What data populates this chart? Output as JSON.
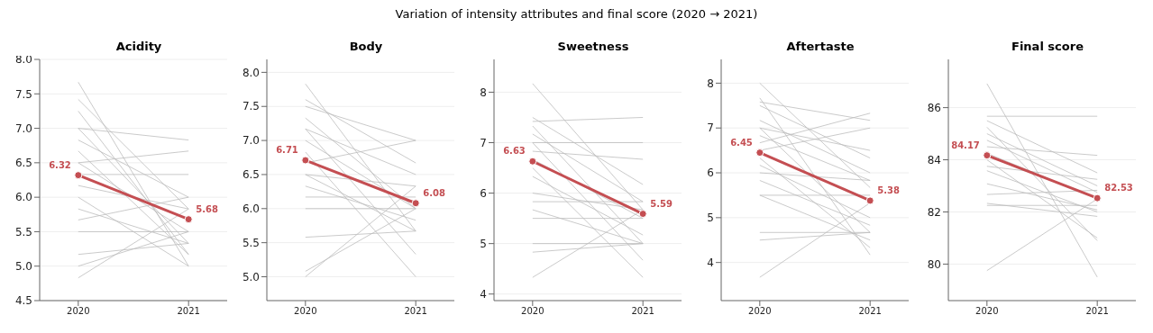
{
  "chart_data": [
    {
      "type": "line",
      "title": "Acidity",
      "annotations": [
        "Variation of intensity attributes and final score (2020 → 2021)"
      ],
      "categories": [
        "2020",
        "2021"
      ],
      "ylim": [
        4.5,
        8.0
      ],
      "yticks": [
        4.5,
        {
          "value": 5,
          "label": "5.0"
        },
        5.5,
        {
          "value": 6,
          "label": "6.0"
        },
        6.5,
        {
          "value": 7,
          "label": "7.0"
        },
        7.5,
        {
          "value": 8,
          "label": "8.0"
        }
      ],
      "grid": "y",
      "series": [
        {
          "color": "#bdbdbd",
          "values": [
            7.67,
            5.0
          ]
        },
        {
          "color": "#bdbdbd",
          "values": [
            7.42,
            5.83
          ]
        },
        {
          "color": "#bdbdbd",
          "values": [
            7.25,
            5.17
          ]
        },
        {
          "color": "#bdbdbd",
          "values": [
            7.0,
            6.83
          ]
        },
        {
          "color": "#bdbdbd",
          "values": [
            7.0,
            5.33
          ]
        },
        {
          "color": "#bdbdbd",
          "values": [
            6.83,
            6.0
          ]
        },
        {
          "color": "#bdbdbd",
          "values": [
            6.67,
            5.17
          ]
        },
        {
          "color": "#bdbdbd",
          "values": [
            6.5,
            6.67
          ]
        },
        {
          "color": "#bdbdbd",
          "values": [
            6.5,
            5.5
          ]
        },
        {
          "color": "#bdbdbd",
          "values": [
            6.33,
            6.33
          ]
        },
        {
          "color": "#bdbdbd",
          "values": [
            6.17,
            5.83
          ]
        },
        {
          "color": "#bdbdbd",
          "values": [
            6.0,
            5.0
          ]
        },
        {
          "color": "#bdbdbd",
          "values": [
            5.83,
            5.33
          ]
        },
        {
          "color": "#bdbdbd",
          "values": [
            5.67,
            6.0
          ]
        },
        {
          "color": "#bdbdbd",
          "values": [
            5.5,
            5.5
          ]
        },
        {
          "color": "#bdbdbd",
          "values": [
            5.17,
            5.33
          ]
        },
        {
          "color": "#bdbdbd",
          "values": [
            5.0,
            5.5
          ]
        },
        {
          "color": "#bdbdbd",
          "values": [
            4.83,
            5.83
          ]
        },
        {
          "color": "#c44e52",
          "values": [
            6.32,
            5.68
          ],
          "marker": "circle",
          "value_labels": [
            "6.32",
            "5.68"
          ]
        }
      ]
    },
    {
      "type": "line",
      "title": "Body",
      "categories": [
        "2020",
        "2021"
      ],
      "ylim": [
        4.65,
        8.19
      ],
      "yticks": [
        {
          "value": 5,
          "label": "5.0"
        },
        5.5,
        {
          "value": 6,
          "label": "6.0"
        },
        6.5,
        {
          "value": 7,
          "label": "7.0"
        },
        7.5,
        {
          "value": 8,
          "label": "8.0"
        }
      ],
      "grid": "y",
      "series": [
        {
          "color": "#bdbdbd",
          "values": [
            7.83,
            5.67
          ]
        },
        {
          "color": "#bdbdbd",
          "values": [
            7.6,
            6.67
          ]
        },
        {
          "color": "#bdbdbd",
          "values": [
            7.5,
            7.0
          ]
        },
        {
          "color": "#bdbdbd",
          "values": [
            7.33,
            6.0
          ]
        },
        {
          "color": "#bdbdbd",
          "values": [
            7.17,
            6.5
          ]
        },
        {
          "color": "#bdbdbd",
          "values": [
            7.17,
            5.33
          ]
        },
        {
          "color": "#bdbdbd",
          "values": [
            7.0,
            6.0
          ]
        },
        {
          "color": "#bdbdbd",
          "values": [
            6.83,
            5.0
          ]
        },
        {
          "color": "#bdbdbd",
          "values": [
            6.67,
            7.0
          ]
        },
        {
          "color": "#bdbdbd",
          "values": [
            6.5,
            6.33
          ]
        },
        {
          "color": "#bdbdbd",
          "values": [
            6.5,
            5.67
          ]
        },
        {
          "color": "#bdbdbd",
          "values": [
            6.33,
            5.83
          ]
        },
        {
          "color": "#bdbdbd",
          "values": [
            6.17,
            6.17
          ]
        },
        {
          "color": "#bdbdbd",
          "values": [
            6.0,
            6.0
          ]
        },
        {
          "color": "#bdbdbd",
          "values": [
            5.58,
            5.67
          ]
        },
        {
          "color": "#bdbdbd",
          "values": [
            5.08,
            6.0
          ]
        },
        {
          "color": "#bdbdbd",
          "values": [
            5.0,
            6.33
          ]
        },
        {
          "color": "#c44e52",
          "values": [
            6.71,
            6.08
          ],
          "marker": "circle",
          "value_labels": [
            "6.71",
            "6.08"
          ]
        }
      ]
    },
    {
      "type": "line",
      "title": "Sweetness",
      "categories": [
        "2020",
        "2021"
      ],
      "ylim": [
        3.87,
        8.65
      ],
      "yticks": [
        4,
        5,
        6,
        7,
        8
      ],
      "grid": "y",
      "series": [
        {
          "color": "#bdbdbd",
          "values": [
            8.17,
            5.67
          ]
        },
        {
          "color": "#bdbdbd",
          "values": [
            7.5,
            6.17
          ]
        },
        {
          "color": "#bdbdbd",
          "values": [
            7.42,
            7.5
          ]
        },
        {
          "color": "#bdbdbd",
          "values": [
            7.33,
            5.0
          ]
        },
        {
          "color": "#bdbdbd",
          "values": [
            7.17,
            5.83
          ]
        },
        {
          "color": "#bdbdbd",
          "values": [
            7.0,
            7.0
          ]
        },
        {
          "color": "#bdbdbd",
          "values": [
            7.0,
            4.67
          ]
        },
        {
          "color": "#bdbdbd",
          "values": [
            6.83,
            6.67
          ]
        },
        {
          "color": "#bdbdbd",
          "values": [
            6.67,
            5.5
          ]
        },
        {
          "color": "#bdbdbd",
          "values": [
            6.5,
            4.33
          ]
        },
        {
          "color": "#bdbdbd",
          "values": [
            6.33,
            5.17
          ]
        },
        {
          "color": "#bdbdbd",
          "values": [
            6.0,
            5.67
          ]
        },
        {
          "color": "#bdbdbd",
          "values": [
            5.83,
            5.83
          ]
        },
        {
          "color": "#bdbdbd",
          "values": [
            5.67,
            5.0
          ]
        },
        {
          "color": "#bdbdbd",
          "values": [
            5.5,
            5.5
          ]
        },
        {
          "color": "#bdbdbd",
          "values": [
            5.0,
            5.0
          ]
        },
        {
          "color": "#bdbdbd",
          "values": [
            4.83,
            5.0
          ]
        },
        {
          "color": "#bdbdbd",
          "values": [
            4.33,
            5.67
          ]
        },
        {
          "color": "#c44e52",
          "values": [
            6.63,
            5.59
          ],
          "marker": "circle",
          "value_labels": [
            "6.63",
            "5.59"
          ]
        }
      ]
    },
    {
      "type": "line",
      "title": "Aftertaste",
      "categories": [
        "2020",
        "2021"
      ],
      "ylim": [
        3.15,
        8.53
      ],
      "yticks": [
        4,
        5,
        6,
        7,
        8
      ],
      "grid": "y",
      "series": [
        {
          "color": "#bdbdbd",
          "values": [
            8.0,
            5.67
          ]
        },
        {
          "color": "#bdbdbd",
          "values": [
            7.67,
            4.17
          ]
        },
        {
          "color": "#bdbdbd",
          "values": [
            7.58,
            7.17
          ]
        },
        {
          "color": "#bdbdbd",
          "values": [
            7.5,
            6.33
          ]
        },
        {
          "color": "#bdbdbd",
          "values": [
            7.17,
            6.0
          ]
        },
        {
          "color": "#bdbdbd",
          "values": [
            7.0,
            6.5
          ]
        },
        {
          "color": "#bdbdbd",
          "values": [
            7.0,
            4.67
          ]
        },
        {
          "color": "#bdbdbd",
          "values": [
            6.83,
            5.83
          ]
        },
        {
          "color": "#bdbdbd",
          "values": [
            6.67,
            7.33
          ]
        },
        {
          "color": "#bdbdbd",
          "values": [
            6.5,
            7.0
          ]
        },
        {
          "color": "#bdbdbd",
          "values": [
            6.33,
            4.33
          ]
        },
        {
          "color": "#bdbdbd",
          "values": [
            6.17,
            5.0
          ]
        },
        {
          "color": "#bdbdbd",
          "values": [
            6.0,
            5.83
          ]
        },
        {
          "color": "#bdbdbd",
          "values": [
            5.83,
            4.83
          ]
        },
        {
          "color": "#bdbdbd",
          "values": [
            5.5,
            5.5
          ]
        },
        {
          "color": "#bdbdbd",
          "values": [
            5.5,
            4.5
          ]
        },
        {
          "color": "#bdbdbd",
          "values": [
            4.67,
            4.67
          ]
        },
        {
          "color": "#bdbdbd",
          "values": [
            4.5,
            4.67
          ]
        },
        {
          "color": "#bdbdbd",
          "values": [
            3.67,
            5.33
          ]
        },
        {
          "color": "#c44e52",
          "values": [
            6.45,
            5.38
          ],
          "marker": "circle",
          "value_labels": [
            "6.45",
            "5.38"
          ]
        }
      ]
    },
    {
      "type": "line",
      "title": "Final score",
      "categories": [
        "2020",
        "2021"
      ],
      "ylim": [
        78.6,
        87.85
      ],
      "yticks": [
        80,
        82,
        84,
        86
      ],
      "grid": "y",
      "series": [
        {
          "color": "#bdbdbd",
          "values": [
            86.92,
            79.5
          ]
        },
        {
          "color": "#bdbdbd",
          "values": [
            85.67,
            85.67
          ]
        },
        {
          "color": "#bdbdbd",
          "values": [
            85.5,
            83.5
          ]
        },
        {
          "color": "#bdbdbd",
          "values": [
            85.25,
            80.9
          ]
        },
        {
          "color": "#bdbdbd",
          "values": [
            85.0,
            83.0
          ]
        },
        {
          "color": "#bdbdbd",
          "values": [
            84.75,
            82.75
          ]
        },
        {
          "color": "#bdbdbd",
          "values": [
            84.5,
            84.17
          ]
        },
        {
          "color": "#bdbdbd",
          "values": [
            84.25,
            82.5
          ]
        },
        {
          "color": "#bdbdbd",
          "values": [
            84.0,
            81.0
          ]
        },
        {
          "color": "#bdbdbd",
          "values": [
            83.75,
            83.25
          ]
        },
        {
          "color": "#bdbdbd",
          "values": [
            83.58,
            82.0
          ]
        },
        {
          "color": "#bdbdbd",
          "values": [
            83.08,
            82.08
          ]
        },
        {
          "color": "#bdbdbd",
          "values": [
            82.67,
            82.83
          ]
        },
        {
          "color": "#bdbdbd",
          "values": [
            82.33,
            81.83
          ]
        },
        {
          "color": "#bdbdbd",
          "values": [
            82.25,
            82.25
          ]
        },
        {
          "color": "#bdbdbd",
          "values": [
            79.75,
            82.5
          ]
        },
        {
          "color": "#c44e52",
          "values": [
            84.17,
            82.53
          ],
          "marker": "circle",
          "value_labels": [
            "84.17",
            "82.53"
          ]
        }
      ]
    }
  ]
}
